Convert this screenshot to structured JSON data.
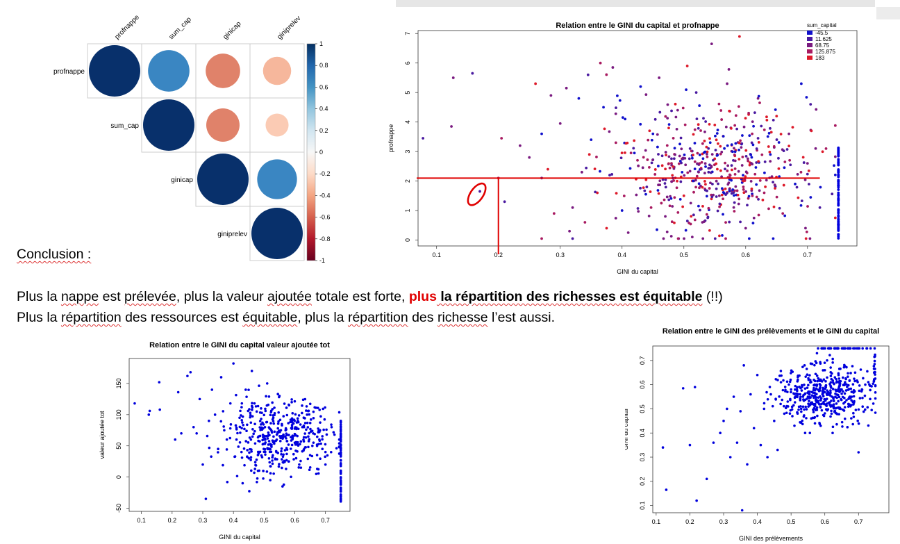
{
  "conclusion": {
    "heading": "Conclusion :",
    "line1": {
      "part_a": "Plus la ",
      "part_b": "nappe",
      "part_c": " est ",
      "part_d": "prélevée",
      "part_e": ", plus la valeur ",
      "part_f": "ajoutée",
      "part_g": " totale est forte, ",
      "highlight": "plus",
      "bold": " la répartition des richesses est équitable",
      "tail": " (!!)"
    },
    "line2": {
      "part_a": "Plus la ",
      "part_b": "répartition",
      "part_c": " des ressources est ",
      "part_d": "équitable",
      "part_e": ", plus la ",
      "part_f": "répartition",
      "part_g": " des ",
      "part_h": "richesse",
      "part_i": " l’est aussi."
    }
  },
  "colors": {
    "corr_strong_pos": "#08306b",
    "corr_mid_pos": "#3a86c2",
    "corr_neg_mid": "#e0826a",
    "corr_neg_light": "#f6b79c",
    "corr_neg_vlight": "#fbcbb4",
    "point_blue": "#0000dd",
    "annotation_red": "#e00000"
  },
  "chart_data": [
    {
      "type": "heatmap",
      "title": "",
      "variables": [
        "profnappe",
        "sum_cap",
        "ginicap",
        "giniprelev"
      ],
      "matrix": [
        [
          1.0,
          0.65,
          -0.45,
          -0.3
        ],
        [
          0.65,
          1.0,
          -0.42,
          -0.2
        ],
        [
          -0.45,
          -0.42,
          1.0,
          0.6
        ],
        [
          -0.3,
          -0.2,
          0.6,
          1.0
        ]
      ],
      "colorbar_ticks": [
        "1",
        "0.8",
        "0.6",
        "0.4",
        "0.2",
        "0",
        "-0.2",
        "-0.4",
        "-0.6",
        "-0.8",
        "-1"
      ],
      "colorbar_stops": [
        "#053061",
        "#2166ac",
        "#4393c3",
        "#92c5de",
        "#d1e5f0",
        "#f7f7f7",
        "#fddbc7",
        "#f4a582",
        "#d6604d",
        "#b2182b",
        "#67001f"
      ]
    },
    {
      "type": "scatter",
      "title": "Relation entre le GINI du capital et profnappe",
      "xlabel": "GINI du capital",
      "ylabel": "profnappe",
      "xlim": [
        0.07,
        0.78
      ],
      "ylim": [
        -0.2,
        7.1
      ],
      "xticks": [
        "0.1",
        "0.2",
        "0.3",
        "0.4",
        "0.5",
        "0.6",
        "0.7"
      ],
      "yticks": [
        "0",
        "1",
        "2",
        "3",
        "4",
        "5",
        "6",
        "7"
      ],
      "legend": {
        "title": "sum_capital",
        "entries": [
          "-45.5",
          "11.625",
          "68.75",
          "125.875",
          "183"
        ],
        "colors": [
          "#1010cc",
          "#4a1aa0",
          "#7a1a80",
          "#a81a60",
          "#dd1a2a"
        ],
        "position": "top-right"
      },
      "annotation": {
        "hline_y": 2.1,
        "hline_x_end": 0.72,
        "vline_x": 0.2,
        "ellipse_center": [
          0.165,
          1.55
        ]
      },
      "points": [
        [
          0.078,
          3.45
        ],
        [
          0.124,
          3.85
        ],
        [
          0.127,
          5.5
        ],
        [
          0.158,
          5.65
        ],
        [
          0.17,
          1.65
        ],
        [
          0.2,
          2.1
        ],
        [
          0.205,
          3.45
        ],
        [
          0.21,
          1.3
        ],
        [
          0.235,
          3.2
        ],
        [
          0.25,
          2.8
        ],
        [
          0.26,
          5.3
        ],
        [
          0.27,
          2.1
        ],
        [
          0.27,
          3.6
        ],
        [
          0.28,
          2.4
        ],
        [
          0.285,
          4.9
        ],
        [
          0.29,
          0.9
        ],
        [
          0.3,
          3.95
        ],
        [
          0.31,
          5.15
        ],
        [
          0.315,
          0.3
        ],
        [
          0.32,
          1.1
        ],
        [
          0.33,
          4.8
        ],
        [
          0.335,
          2.3
        ],
        [
          0.34,
          0.6
        ],
        [
          0.345,
          5.6
        ],
        [
          0.35,
          3.4
        ],
        [
          0.36,
          1.6
        ],
        [
          0.365,
          6.0
        ],
        [
          0.37,
          4.5
        ],
        [
          0.375,
          0.4
        ],
        [
          0.38,
          2.2
        ],
        [
          0.385,
          5.85
        ],
        [
          0.39,
          3.3
        ],
        [
          0.4,
          1.0
        ],
        [
          0.405,
          4.1
        ],
        [
          0.41,
          0.25
        ],
        [
          0.42,
          2.95
        ],
        [
          0.43,
          5.2
        ],
        [
          0.44,
          1.8
        ],
        [
          0.45,
          3.6
        ],
        [
          0.46,
          5.5
        ],
        [
          0.47,
          0.8
        ],
        [
          0.48,
          2.6
        ],
        [
          0.49,
          4.4
        ],
        [
          0.5,
          1.5
        ],
        [
          0.51,
          3.1
        ],
        [
          0.52,
          5.0
        ],
        [
          0.53,
          0.6
        ],
        [
          0.54,
          2.3
        ],
        [
          0.545,
          6.65
        ],
        [
          0.55,
          3.9
        ],
        [
          0.56,
          1.2
        ],
        [
          0.57,
          5.3
        ],
        [
          0.58,
          2.7
        ],
        [
          0.59,
          6.9
        ],
        [
          0.6,
          0.4
        ],
        [
          0.61,
          3.3
        ],
        [
          0.62,
          4.8
        ],
        [
          0.63,
          1.6
        ],
        [
          0.64,
          2.9
        ],
        [
          0.65,
          4.2
        ],
        [
          0.66,
          0.9
        ],
        [
          0.67,
          3.6
        ],
        [
          0.68,
          1.9
        ],
        [
          0.69,
          5.3
        ],
        [
          0.7,
          2.6
        ],
        [
          0.705,
          4.6
        ],
        [
          0.72,
          1.1
        ],
        [
          0.73,
          3.1
        ]
      ]
    },
    {
      "type": "scatter",
      "title": "Relation entre le GINI du capital valeur ajoutée tot",
      "xlabel": "GINI du capital",
      "ylabel": "valeur ajoutée tot",
      "xlim": [
        0.06,
        0.78
      ],
      "ylim": [
        -55,
        190
      ],
      "xticks": [
        "0.1",
        "0.2",
        "0.3",
        "0.4",
        "0.5",
        "0.6",
        "0.7"
      ],
      "yticks": [
        "-50",
        "0",
        "50",
        "100",
        "150"
      ],
      "points": [
        [
          0.078,
          118
        ],
        [
          0.124,
          100
        ],
        [
          0.127,
          106
        ],
        [
          0.158,
          152
        ],
        [
          0.16,
          108
        ],
        [
          0.21,
          60
        ],
        [
          0.22,
          136
        ],
        [
          0.23,
          70
        ],
        [
          0.25,
          162
        ],
        [
          0.26,
          168
        ],
        [
          0.27,
          80
        ],
        [
          0.28,
          70
        ],
        [
          0.29,
          125
        ],
        [
          0.3,
          20
        ],
        [
          0.31,
          -35
        ],
        [
          0.32,
          90
        ],
        [
          0.33,
          140
        ],
        [
          0.34,
          100
        ],
        [
          0.35,
          45
        ],
        [
          0.36,
          160
        ],
        [
          0.37,
          75
        ],
        [
          0.38,
          -8
        ],
        [
          0.39,
          118
        ],
        [
          0.4,
          182
        ],
        [
          0.41,
          60
        ],
        [
          0.42,
          95
        ],
        [
          0.43,
          -10
        ],
        [
          0.44,
          140
        ],
        [
          0.45,
          30
        ],
        [
          0.46,
          170
        ],
        [
          0.47,
          85
        ],
        [
          0.48,
          10
        ],
        [
          0.49,
          110
        ],
        [
          0.5,
          60
        ],
        [
          0.51,
          150
        ],
        [
          0.52,
          -5
        ],
        [
          0.53,
          95
        ],
        [
          0.54,
          40
        ],
        [
          0.55,
          130
        ],
        [
          0.56,
          -15
        ],
        [
          0.57,
          75
        ],
        [
          0.58,
          25
        ],
        [
          0.59,
          120
        ],
        [
          0.6,
          55
        ],
        [
          0.61,
          90
        ],
        [
          0.62,
          15
        ],
        [
          0.63,
          80
        ],
        [
          0.64,
          100
        ],
        [
          0.65,
          35
        ],
        [
          0.66,
          70
        ],
        [
          0.67,
          5
        ],
        [
          0.68,
          60
        ],
        [
          0.69,
          45
        ],
        [
          0.7,
          20
        ],
        [
          0.72,
          80
        ]
      ]
    },
    {
      "type": "scatter",
      "title": "Relation entre le GINI des prélèvements et le GINI du capital",
      "xlabel": "GINI des prélèvements",
      "ylabel": "GINI du capital",
      "xlim": [
        0.09,
        0.79
      ],
      "ylim": [
        0.07,
        0.76
      ],
      "xticks": [
        "0.1",
        "0.2",
        "0.3",
        "0.4",
        "0.5",
        "0.6",
        "0.7"
      ],
      "yticks": [
        "0.1",
        "0.2",
        "0.3",
        "0.4",
        "0.5",
        "0.6",
        "0.7"
      ],
      "points": [
        [
          0.12,
          0.34
        ],
        [
          0.13,
          0.165
        ],
        [
          0.18,
          0.585
        ],
        [
          0.2,
          0.35
        ],
        [
          0.215,
          0.59
        ],
        [
          0.22,
          0.12
        ],
        [
          0.25,
          0.21
        ],
        [
          0.27,
          0.36
        ],
        [
          0.29,
          0.4
        ],
        [
          0.3,
          0.45
        ],
        [
          0.31,
          0.5
        ],
        [
          0.32,
          0.3
        ],
        [
          0.33,
          0.55
        ],
        [
          0.34,
          0.36
        ],
        [
          0.35,
          0.49
        ],
        [
          0.355,
          0.08
        ],
        [
          0.36,
          0.68
        ],
        [
          0.37,
          0.27
        ],
        [
          0.38,
          0.56
        ],
        [
          0.39,
          0.42
        ],
        [
          0.4,
          0.64
        ],
        [
          0.41,
          0.35
        ],
        [
          0.42,
          0.5
        ],
        [
          0.43,
          0.3
        ],
        [
          0.44,
          0.56
        ],
        [
          0.45,
          0.45
        ],
        [
          0.46,
          0.33
        ],
        [
          0.47,
          0.61
        ],
        [
          0.48,
          0.48
        ],
        [
          0.49,
          0.53
        ],
        [
          0.5,
          0.58
        ],
        [
          0.51,
          0.43
        ],
        [
          0.52,
          0.62
        ],
        [
          0.53,
          0.5
        ],
        [
          0.54,
          0.68
        ],
        [
          0.55,
          0.55
        ],
        [
          0.56,
          0.46
        ],
        [
          0.57,
          0.6
        ],
        [
          0.58,
          0.75
        ],
        [
          0.59,
          0.52
        ],
        [
          0.6,
          0.66
        ],
        [
          0.61,
          0.56
        ],
        [
          0.62,
          0.48
        ],
        [
          0.63,
          0.63
        ],
        [
          0.64,
          0.75
        ],
        [
          0.65,
          0.58
        ],
        [
          0.66,
          0.61
        ],
        [
          0.67,
          0.52
        ],
        [
          0.68,
          0.55
        ],
        [
          0.69,
          0.65
        ],
        [
          0.7,
          0.32
        ],
        [
          0.71,
          0.58
        ],
        [
          0.72,
          0.6
        ]
      ]
    }
  ]
}
